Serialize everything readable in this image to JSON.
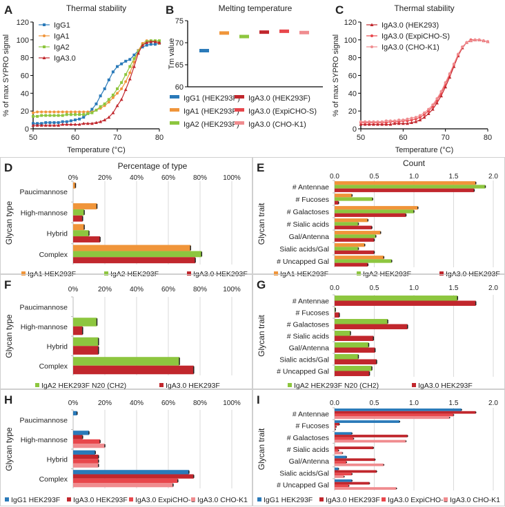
{
  "chart_data": [
    {
      "id": "A",
      "panel_label": "A",
      "type": "line",
      "title": "Thermal stability",
      "xlabel": "Temperature (°C)",
      "ylabel": "% of max SYPRO signal",
      "xlim": [
        50,
        80
      ],
      "ylim": [
        0,
        120
      ],
      "xticks": [
        50,
        60,
        70,
        80
      ],
      "yticks": [
        0,
        20,
        40,
        60,
        80,
        100,
        120
      ],
      "legend": "top-left",
      "x": [
        50,
        51,
        52,
        53,
        54,
        55,
        56,
        57,
        58,
        59,
        60,
        61,
        62,
        63,
        64,
        65,
        66,
        67,
        68,
        69,
        70,
        71,
        72,
        73,
        74,
        75,
        76,
        77,
        78,
        79,
        80
      ],
      "series": [
        {
          "name": "IgG1",
          "color": "#2a7ab9",
          "marker": "square",
          "values": [
            6,
            6,
            6,
            7,
            7,
            7,
            7,
            8,
            8,
            9,
            10,
            11,
            13,
            17,
            22,
            28,
            37,
            45,
            55,
            64,
            70,
            73,
            76,
            78,
            83,
            88,
            92,
            94,
            95,
            95,
            96
          ]
        },
        {
          "name": "IgA1",
          "color": "#f0953a",
          "marker": "circle",
          "values": [
            18,
            19,
            19,
            19,
            19,
            19,
            19,
            19,
            19,
            19,
            19,
            19,
            19,
            19,
            19,
            21,
            23,
            26,
            30,
            35,
            40,
            45,
            53,
            63,
            75,
            88,
            96,
            99,
            99,
            98,
            96
          ]
        },
        {
          "name": "IgA2",
          "color": "#8dc63f",
          "marker": "square",
          "values": [
            14,
            14,
            15,
            15,
            15,
            15,
            15,
            15,
            16,
            16,
            16,
            16,
            16,
            17,
            18,
            21,
            25,
            28,
            33,
            38,
            45,
            52,
            61,
            70,
            79,
            87,
            94,
            98,
            99,
            99,
            99
          ]
        },
        {
          "name": "IgA3.0",
          "color": "#c1272d",
          "marker": "triangle",
          "values": [
            4,
            4,
            4,
            4,
            4,
            4,
            4,
            5,
            5,
            5,
            5,
            5,
            6,
            6,
            6,
            7,
            8,
            10,
            13,
            18,
            26,
            33,
            44,
            56,
            70,
            85,
            94,
            97,
            98,
            98,
            97
          ]
        }
      ]
    },
    {
      "id": "B",
      "panel_label": "B",
      "type": "scatter",
      "title": "Melting temperature",
      "ylabel": "Tm value",
      "ylim": [
        60,
        75
      ],
      "yticks": [
        60,
        65,
        70,
        75
      ],
      "legend": "bottom",
      "categories": [
        "IgG1 (HEK293F)",
        "IgA1 (HEK293F)",
        "IgA2 (HEK293F)",
        "IgA3.0 (HEK293F)",
        "IgA3.0 (ExpiCHO-S)",
        "IgA3.0 (CHO-K1)"
      ],
      "values": [
        68.2,
        72.2,
        71.4,
        72.4,
        72.6,
        72.3
      ],
      "colors": [
        "#2a7ab9",
        "#f0953a",
        "#8dc63f",
        "#c1272d",
        "#e8474c",
        "#f08c8f"
      ]
    },
    {
      "id": "C",
      "panel_label": "C",
      "type": "line",
      "title": "Thermal stability",
      "xlabel": "Temperature (°C)",
      "ylabel": "% of max SYPRO signal",
      "xlim": [
        50,
        80
      ],
      "ylim": [
        0,
        120
      ],
      "xticks": [
        50,
        60,
        70,
        80
      ],
      "yticks": [
        0,
        20,
        40,
        60,
        80,
        100,
        120
      ],
      "legend": "top-left",
      "x": [
        50,
        51,
        52,
        53,
        54,
        55,
        56,
        57,
        58,
        59,
        60,
        61,
        62,
        63,
        64,
        65,
        66,
        67,
        68,
        69,
        70,
        71,
        72,
        73,
        74,
        75,
        76,
        77,
        78,
        79,
        80
      ],
      "series": [
        {
          "name": "IgA3.0 (HEK293)",
          "color": "#c1272d",
          "marker": "triangle",
          "values": [
            5,
            5,
            5,
            5,
            5,
            5,
            5,
            5,
            6,
            6,
            6,
            6,
            7,
            8,
            10,
            13,
            17,
            22,
            29,
            37,
            47,
            58,
            70,
            82,
            91,
            97,
            99,
            100,
            100,
            99,
            98
          ]
        },
        {
          "name": "IgA3.0 (ExpiCHO-S)",
          "color": "#e8474c",
          "marker": "circle",
          "values": [
            7,
            7,
            7,
            7,
            7,
            7,
            7,
            8,
            8,
            8,
            9,
            9,
            10,
            11,
            13,
            16,
            20,
            25,
            32,
            40,
            50,
            61,
            72,
            83,
            92,
            97,
            100,
            100,
            100,
            99,
            98
          ]
        },
        {
          "name": "IgA3.0 (CHO-K1)",
          "color": "#f08c8f",
          "marker": "circle",
          "values": [
            8,
            8,
            8,
            8,
            8,
            8,
            9,
            9,
            9,
            10,
            10,
            11,
            12,
            13,
            15,
            18,
            22,
            27,
            34,
            42,
            52,
            62,
            73,
            84,
            92,
            97,
            99,
            100,
            100,
            99,
            98
          ]
        }
      ]
    },
    {
      "id": "D",
      "panel_label": "D",
      "type": "bar",
      "orientation": "horizontal",
      "title": "Percentage of type",
      "ylabel": "Glycan type",
      "xlim": [
        0,
        100
      ],
      "xticks": [
        "0%",
        "20%",
        "40%",
        "60%",
        "80%",
        "100%"
      ],
      "legend": "bottom",
      "grid": true,
      "categories": [
        "Paucimannose",
        "High-mannose",
        "Hybrid",
        "Complex"
      ],
      "series": [
        {
          "name": "IgA1 HEK293F",
          "color": "#f0953a",
          "values": [
            1.5,
            15,
            7,
            74
          ]
        },
        {
          "name": "IgA2 HEK293F",
          "color": "#8dc63f",
          "values": [
            0,
            7,
            10,
            81
          ]
        },
        {
          "name": "IgA3.0 HEK293F",
          "color": "#c1272d",
          "values": [
            0,
            6,
            17,
            77
          ]
        }
      ]
    },
    {
      "id": "E",
      "panel_label": "E",
      "type": "bar",
      "orientation": "horizontal",
      "title": "Count",
      "ylabel": "Glycan trait",
      "xlim": [
        0,
        2
      ],
      "xticks": [
        "0.0",
        "0.5",
        "1.0",
        "1.5",
        "2.0"
      ],
      "legend": "bottom",
      "grid": true,
      "categories": [
        "# Antennae",
        "# Fucoses",
        "# Galactoses",
        "# Sialic acids",
        "Gal/Antenna",
        "Sialic acids/Gal",
        "# Uncapped Gal"
      ],
      "series": [
        {
          "name": "IgA1 HEK293F",
          "color": "#f0953a",
          "values": [
            1.78,
            0.22,
            1.05,
            0.42,
            0.58,
            0.38,
            0.62
          ]
        },
        {
          "name": "IgA2 HEK293F",
          "color": "#8dc63f",
          "values": [
            1.9,
            0.48,
            1.0,
            0.3,
            0.52,
            0.3,
            0.72
          ]
        },
        {
          "name": "IgA3.0 HEK293F",
          "color": "#c1272d",
          "values": [
            1.76,
            0.05,
            0.9,
            0.47,
            0.5,
            0.5,
            0.42
          ]
        }
      ]
    },
    {
      "id": "F",
      "panel_label": "F",
      "type": "bar",
      "orientation": "horizontal",
      "title": "",
      "ylabel": "Glycan type",
      "xlim": [
        0,
        100
      ],
      "xticks": [
        "0%",
        "20%",
        "40%",
        "60%",
        "80%",
        "100%"
      ],
      "legend": "bottom",
      "grid": true,
      "categories": [
        "Paucimannose",
        "High-mannose",
        "Hybrid",
        "Complex"
      ],
      "series": [
        {
          "name": "IgA2 HEK293F N20 (CH2)",
          "color": "#8dc63f",
          "values": [
            0,
            15,
            16,
            67
          ]
        },
        {
          "name": "IgA3.0 HEK293F",
          "color": "#c1272d",
          "values": [
            0,
            6,
            16,
            76
          ]
        }
      ]
    },
    {
      "id": "G",
      "panel_label": "G",
      "type": "bar",
      "orientation": "horizontal",
      "title": "",
      "ylabel": "Glycan trait",
      "xlim": [
        0,
        2
      ],
      "xticks": [
        "0.0",
        "0.5",
        "1.0",
        "1.5",
        "2.0"
      ],
      "legend": "bottom",
      "grid": true,
      "categories": [
        "# Antennae",
        "# Fucoses",
        "# Galactoses",
        "# Sialic acids",
        "Gal/Antenna",
        "Sialic acids/Gal",
        "# Uncapped Gal"
      ],
      "series": [
        {
          "name": "IgA2 HEK293F N20 (CH2)",
          "color": "#8dc63f",
          "values": [
            1.55,
            0.01,
            0.67,
            0.2,
            0.43,
            0.3,
            0.47
          ]
        },
        {
          "name": "IgA3.0 HEK293F",
          "color": "#c1272d",
          "values": [
            1.78,
            0.06,
            0.92,
            0.49,
            0.51,
            0.53,
            0.44
          ]
        }
      ]
    },
    {
      "id": "H",
      "panel_label": "H",
      "type": "bar",
      "orientation": "horizontal",
      "title": "",
      "ylabel": "Glycan type",
      "xlim": [
        0,
        100
      ],
      "xticks": [
        "0%",
        "20%",
        "40%",
        "60%",
        "80%",
        "100%"
      ],
      "legend": "bottom",
      "grid": true,
      "categories": [
        "Paucimannose",
        "High-mannose",
        "Hybrid",
        "Complex"
      ],
      "series": [
        {
          "name": "IgG1 HEK293F",
          "color": "#2a7ab9",
          "values": [
            2.5,
            10,
            14,
            73
          ]
        },
        {
          "name": "IgA3.0 HEK293F",
          "color": "#c1272d",
          "values": [
            0,
            6,
            16,
            76
          ]
        },
        {
          "name": "IgA3.0 ExpiCHO-S",
          "color": "#e8474c",
          "values": [
            0,
            17,
            16,
            66
          ]
        },
        {
          "name": "IgA3.0 CHO-K1",
          "color": "#f08c8f",
          "values": [
            0,
            20,
            16,
            63
          ]
        }
      ]
    },
    {
      "id": "I",
      "panel_label": "I",
      "type": "bar",
      "orientation": "horizontal",
      "title": "",
      "ylabel": "Glycan trait",
      "xlim": [
        0,
        2
      ],
      "xticks": [
        "0.0",
        "0.5",
        "1.0",
        "1.5",
        "2.0"
      ],
      "legend": "bottom",
      "grid": true,
      "categories": [
        "# Antennae",
        "# Fucoses",
        "# Galactoses",
        "# Sialic acids",
        "Gal/Antenna",
        "Sialic acids/Gal",
        "# Uncapped Gal"
      ],
      "series": [
        {
          "name": "IgG1 HEK293F",
          "color": "#2a7ab9",
          "values": [
            1.6,
            0.82,
            0.22,
            0.0,
            0.15,
            0.05,
            0.22
          ]
        },
        {
          "name": "IgA3.0 HEK293F",
          "color": "#c1272d",
          "values": [
            1.78,
            0.06,
            0.92,
            0.49,
            0.51,
            0.53,
            0.44
          ]
        },
        {
          "name": "IgA3.0 ExpiCHO-S",
          "color": "#e8474c",
          "values": [
            1.5,
            0.02,
            0.24,
            0.05,
            0.15,
            0.22,
            0.18
          ]
        },
        {
          "name": "IgA3.0 CHO-K1",
          "color": "#f08c8f",
          "values": [
            1.45,
            0.01,
            0.9,
            0.1,
            0.62,
            0.12,
            0.78
          ]
        }
      ]
    }
  ]
}
